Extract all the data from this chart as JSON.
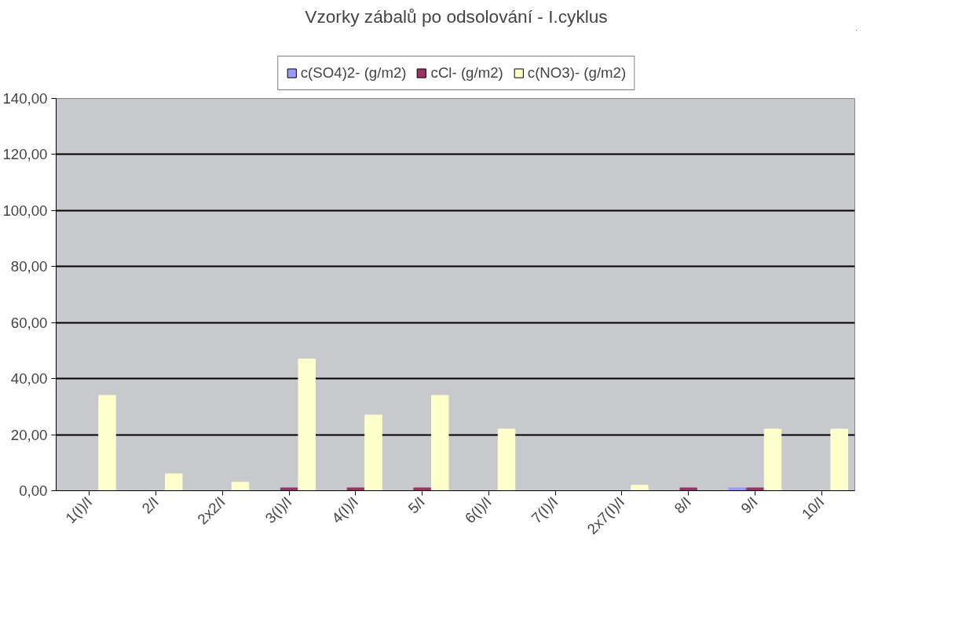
{
  "chart_data": {
    "type": "bar",
    "title": "Vzorky zábalů po odsolování - I.cyklus",
    "categories": [
      "1(I)/I",
      "2/I",
      "2x2/I",
      "3(I)/I",
      "4(I)/I",
      "5/I",
      "6(I)/I",
      "7(I)/I",
      "2x7(I)/I",
      "8/I",
      "9/I",
      "10/I"
    ],
    "series": [
      {
        "name": "c(SO4)2- (g/m2)",
        "color": "#9999ff",
        "values": [
          0,
          0,
          0,
          0,
          0,
          0,
          0,
          0,
          0,
          0,
          1,
          0
        ]
      },
      {
        "name": "cCl- (g/m2)",
        "color": "#993366",
        "values": [
          0,
          0,
          0,
          1,
          1,
          1,
          0,
          0,
          0,
          1,
          1,
          0
        ]
      },
      {
        "name": "c(NO3)- (g/m2)",
        "color": "#ffffcc",
        "values": [
          34,
          6,
          3,
          47,
          27,
          34,
          22,
          0,
          2,
          0,
          22,
          22
        ]
      }
    ],
    "ylim": [
      0,
      140
    ],
    "yticks": [
      {
        "value": 0,
        "label": "0,00"
      },
      {
        "value": 20,
        "label": "20,00"
      },
      {
        "value": 40,
        "label": "40,00"
      },
      {
        "value": 60,
        "label": "60,00"
      },
      {
        "value": 80,
        "label": "80,00"
      },
      {
        "value": 100,
        "label": "100,00"
      },
      {
        "value": 120,
        "label": "120,00"
      },
      {
        "value": 140,
        "label": "140,00"
      }
    ],
    "grid": "y",
    "legend": "top"
  }
}
